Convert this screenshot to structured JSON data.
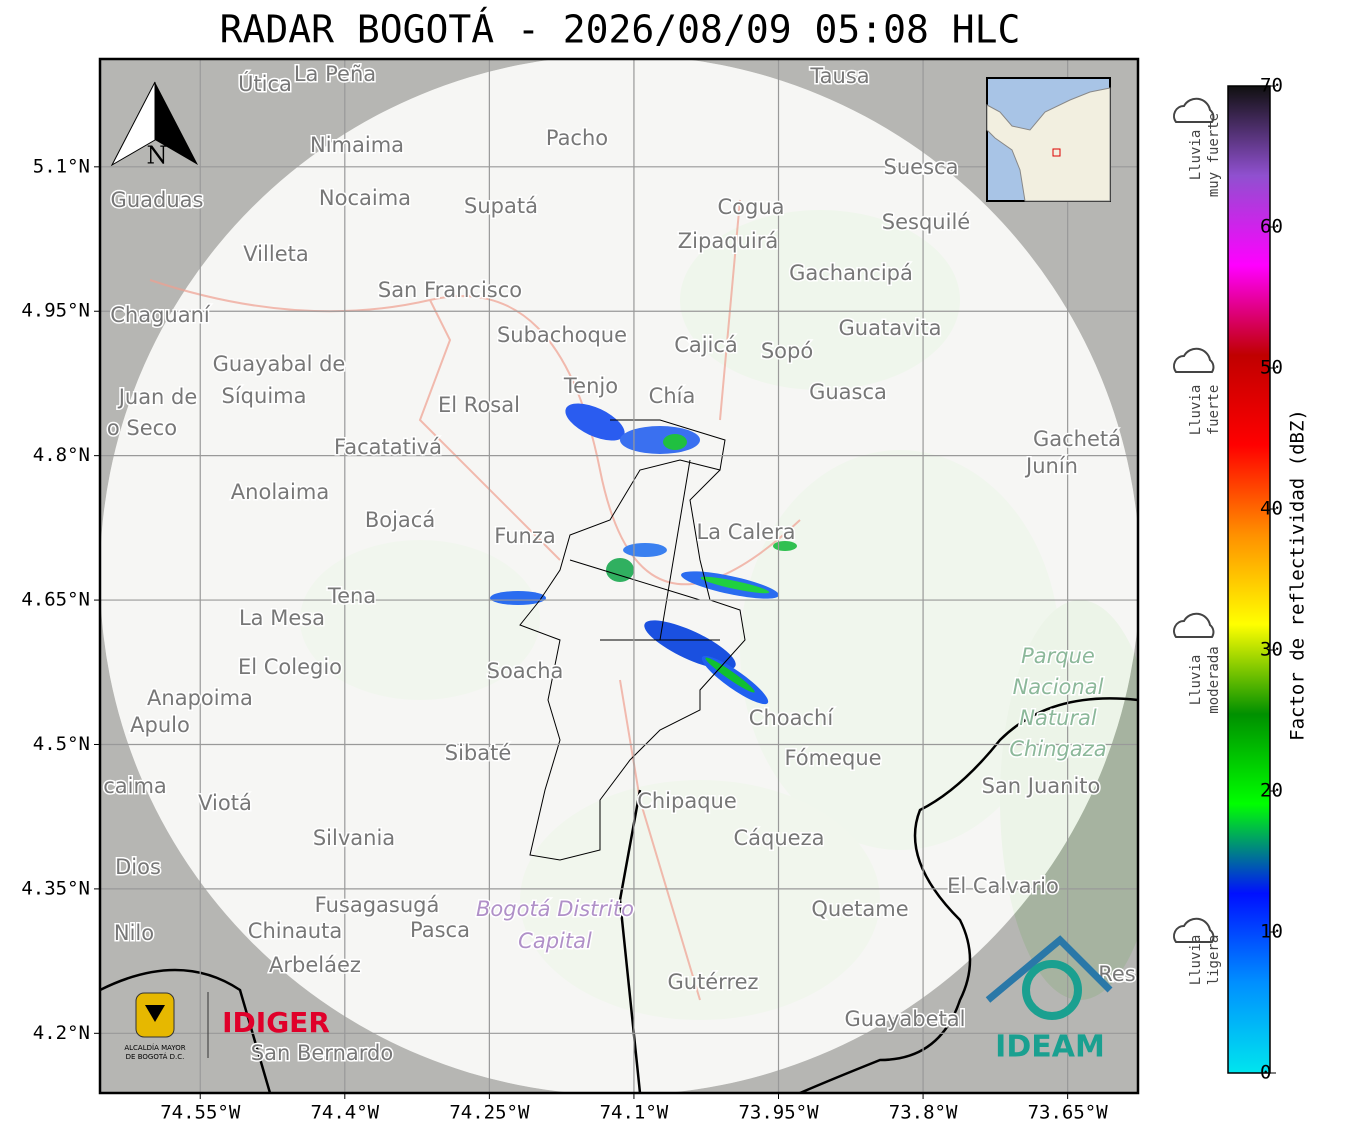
{
  "title": "RADAR BOGOTÁ - 2026/08/09 05:08 HLC",
  "map": {
    "xlim": [
      -74.654,
      -73.577
    ],
    "ylim": [
      4.138,
      5.212
    ],
    "xticks": [
      {
        "value": -74.55,
        "label": "74.55°W"
      },
      {
        "value": -74.4,
        "label": "74.4°W"
      },
      {
        "value": -74.25,
        "label": "74.25°W"
      },
      {
        "value": -74.1,
        "label": "74.1°W"
      },
      {
        "value": -73.95,
        "label": "73.95°W"
      },
      {
        "value": -73.8,
        "label": "73.8°W"
      },
      {
        "value": -73.65,
        "label": "73.65°W"
      }
    ],
    "yticks": [
      {
        "value": 5.1,
        "label": "5.1°N"
      },
      {
        "value": 4.95,
        "label": "4.95°N"
      },
      {
        "value": 4.8,
        "label": "4.8°N"
      },
      {
        "value": 4.65,
        "label": "4.65°N"
      },
      {
        "value": 4.5,
        "label": "4.5°N"
      },
      {
        "value": 4.35,
        "label": "4.35°N"
      },
      {
        "value": 4.2,
        "label": "4.2°N"
      }
    ],
    "grid": true,
    "places": [
      "Útica",
      "La Peña",
      "Tausa",
      "Pacho",
      "Nimaima",
      "Guaduas",
      "Nocaima",
      "Supatá",
      "Cogua",
      "Suesca",
      "Sesquilé",
      "Zipaquirá",
      "Villeta",
      "Gachancipá",
      "San Francisco",
      "Chaguaní",
      "Guatavita",
      "Subachoque",
      "Cajicá",
      "Sopó",
      "Guayabal de",
      "Síquima",
      "Juan de",
      "o Seco",
      "Tenjo",
      "Chía",
      "Guasca",
      "El Rosal",
      "Facatativá",
      "Gachetá",
      "Junín",
      "Anolaima",
      "Bojacá",
      "Funza",
      "La Calera",
      "Tena",
      "La Mesa",
      "Soacha",
      "El Colegio",
      "Anapoima",
      "Apulo",
      "Choachí",
      "Sibaté",
      "Fómeque",
      "San Juanito",
      "caima",
      "Viotá",
      "Chipaque",
      "Silvania",
      "Cáqueza",
      "Dios",
      "El Calvario",
      "Fusagasugá",
      "Quetame",
      "Nilo",
      "Chinauta",
      "Pasca",
      "Arbeláez",
      "Gutérrez",
      "Res",
      "Guayabetal",
      "San Bernardo"
    ],
    "district_label": [
      "Bogotá Distrito",
      "Capital"
    ],
    "park_label": [
      "Parque",
      "Nacional",
      "Natural",
      "Chingaza"
    ],
    "north": "N"
  },
  "colorbar": {
    "label": "Factor de reflectividad (dBZ)",
    "lim": [
      0,
      70
    ],
    "ticks": [
      0,
      10,
      20,
      30,
      40,
      50,
      60,
      70
    ],
    "colors": [
      "#00e5ee",
      "#0090ff",
      "#0010ff",
      "#00ff00",
      "#009000",
      "#ffff00",
      "#ff9000",
      "#ff0000",
      "#c00000",
      "#ff00ff",
      "#9050d0",
      "#101010"
    ]
  },
  "legend": [
    {
      "lines": [
        "Lluvia",
        "muy fuerte"
      ]
    },
    {
      "lines": [
        "Lluvia",
        "fuerte"
      ]
    },
    {
      "lines": [
        "Lluvia",
        "moderada"
      ]
    },
    {
      "lines": [
        "Lluvia",
        "ligera"
      ]
    }
  ],
  "logos": {
    "alcaldia": [
      "ALCALDÍA MAYOR",
      "DE BOGOTÁ D.C."
    ],
    "idiger": "IDIGER",
    "ideam": "IDEAM"
  }
}
